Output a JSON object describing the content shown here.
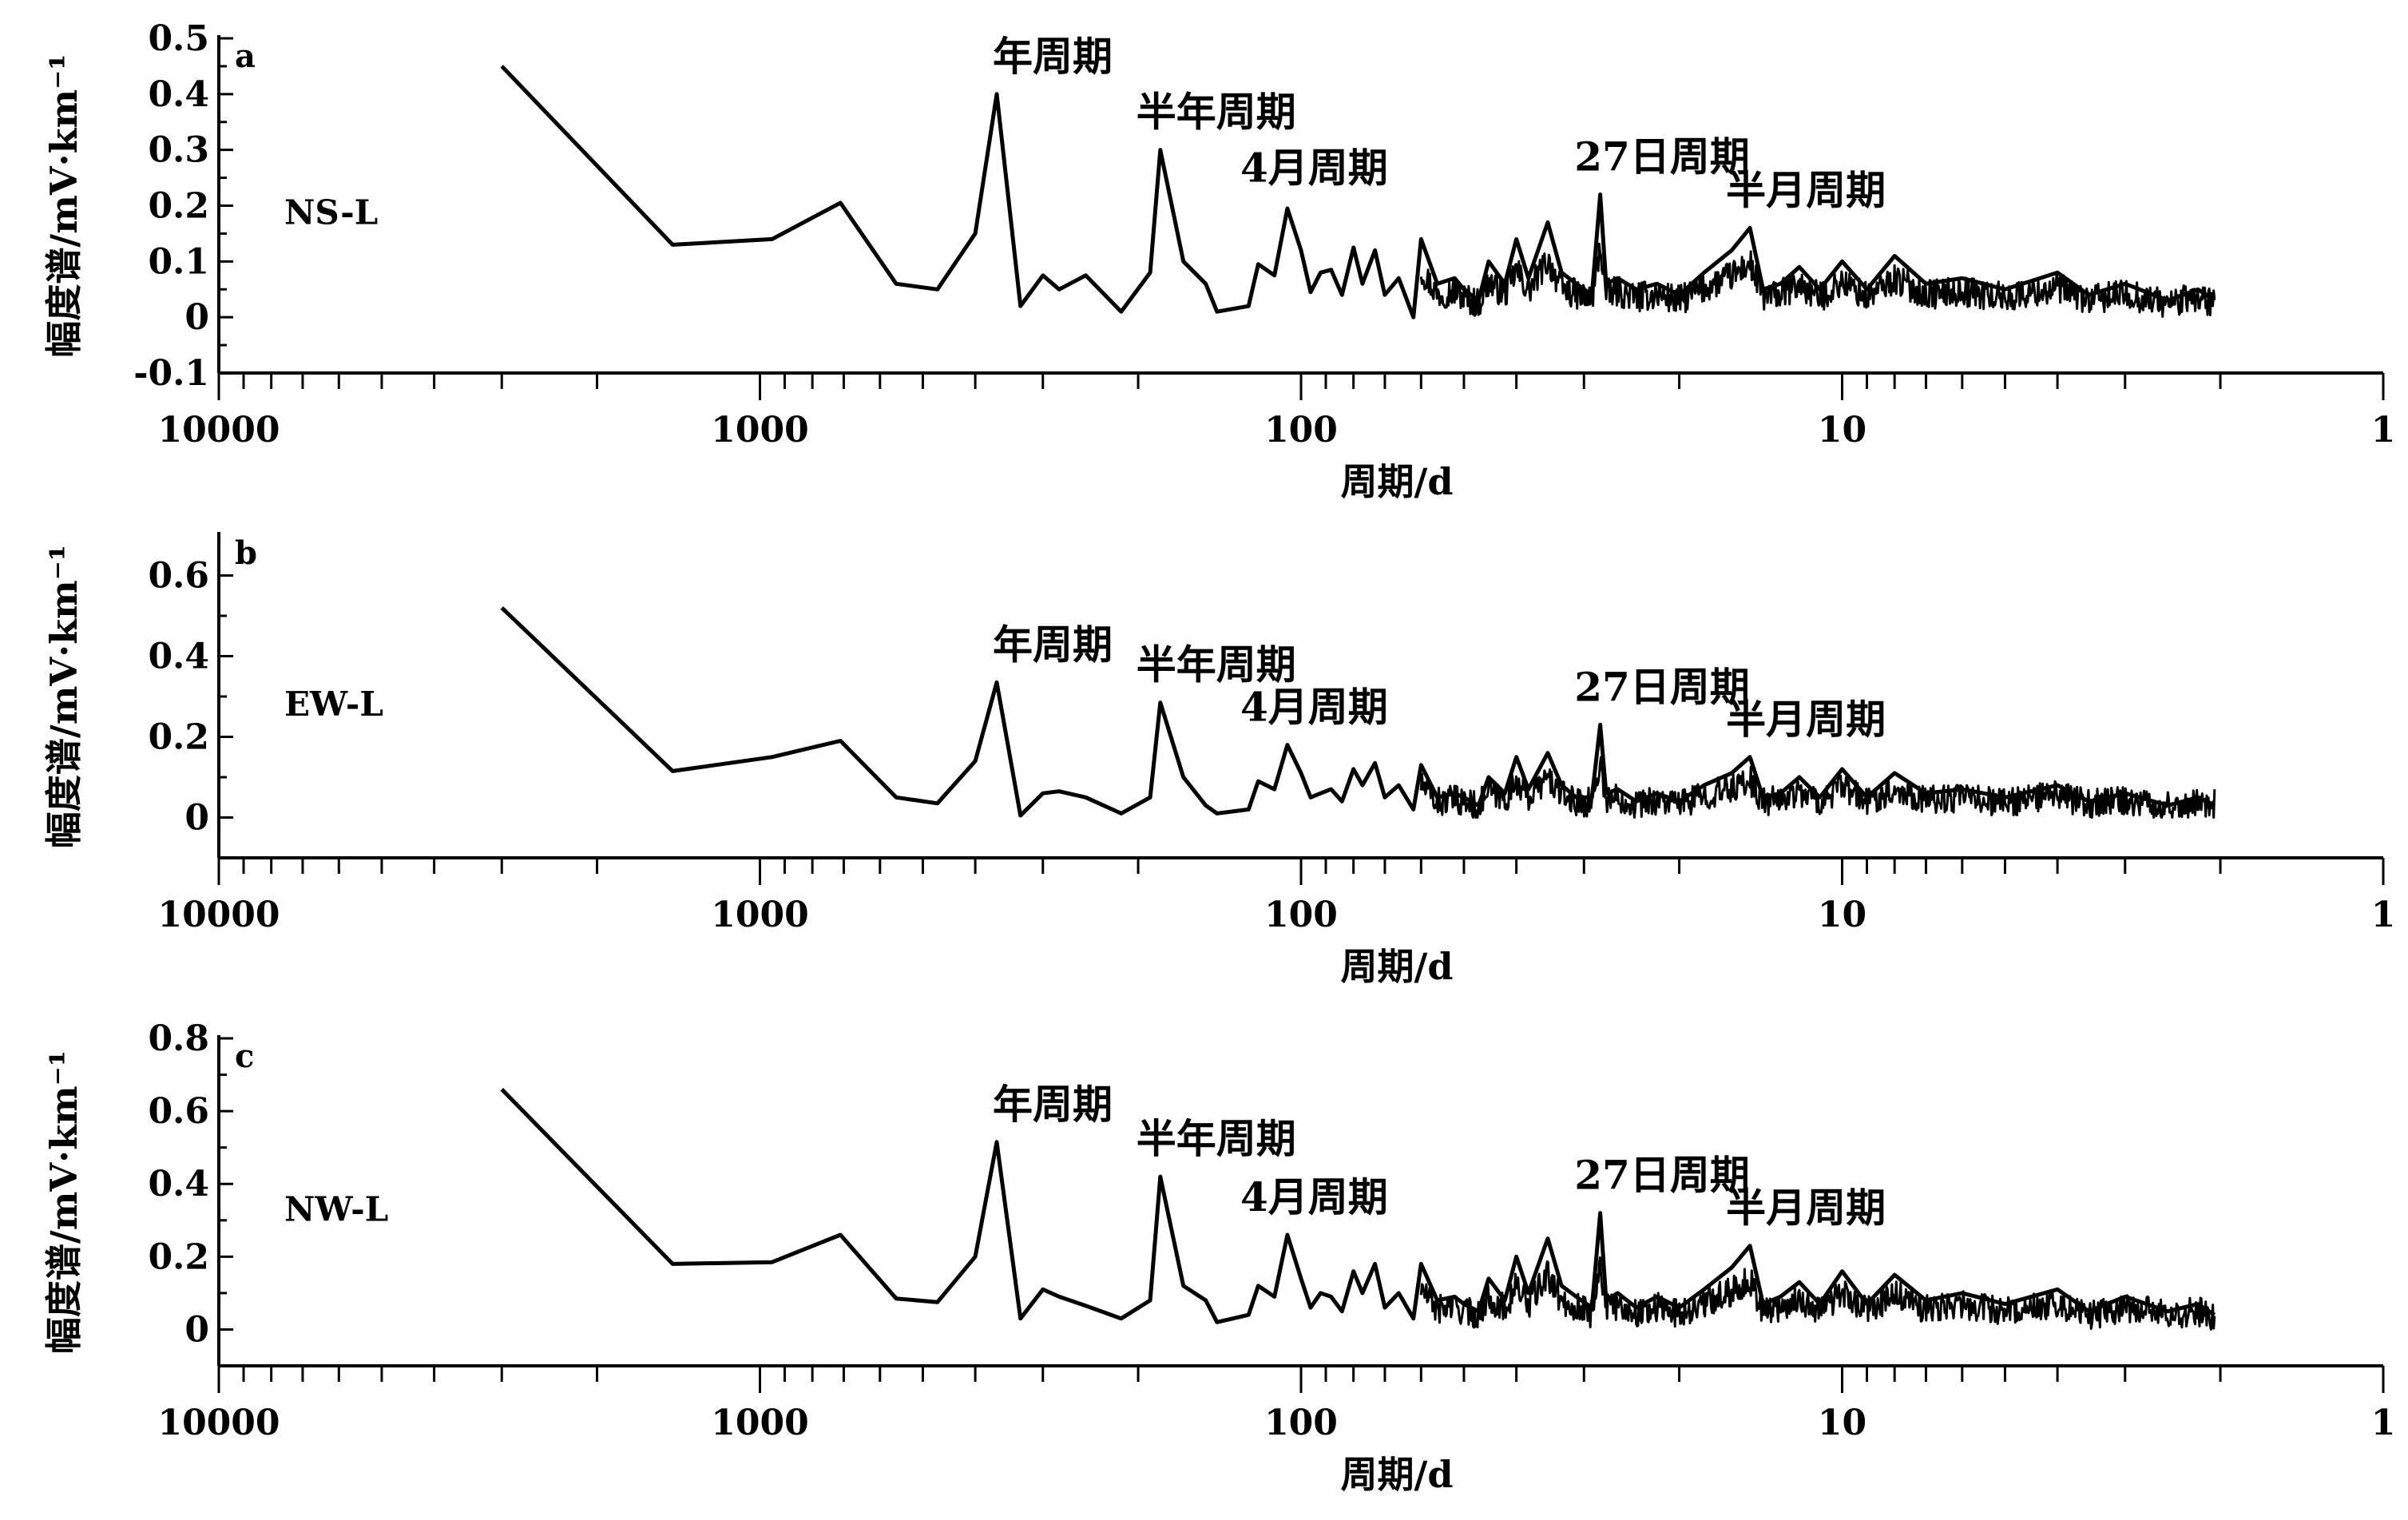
{
  "chart_data": [
    {
      "type": "line",
      "panel_label": "a",
      "series_label": "NS-L",
      "xlabel": "周期/d",
      "ylabel": "幅度谱/mV·km⁻¹",
      "xscale": "log",
      "xreversed": true,
      "xlim": [
        10000,
        1
      ],
      "ylim": [
        -0.1,
        0.5
      ],
      "yticks": [
        -0.1,
        0,
        0.1,
        0.2,
        0.3,
        0.4,
        0.5
      ],
      "ytick_labels": [
        "-0.1",
        "0",
        "0.1",
        "0.2",
        "0.3",
        "0.4",
        "0.5"
      ],
      "xticks": [
        10000,
        1000,
        100,
        10,
        1
      ],
      "xtick_labels": [
        "10000",
        "1000",
        "100",
        "10",
        "1"
      ],
      "series": [
        {
          "x": [
            3000,
            1450,
            950,
            710,
            560,
            470,
            400,
            365,
            330,
            300,
            280,
            250,
            215,
            190,
            182,
            165,
            150,
            143,
            125,
            120,
            112,
            106,
            100,
            96,
            92,
            88,
            84,
            80,
            77,
            73,
            70,
            66,
            62,
            60,
            56,
            52,
            50,
            47,
            45,
            42,
            40,
            38,
            35,
            33,
            31,
            29,
            28,
            27.3,
            26,
            24,
            22,
            20,
            18,
            16,
            14.8,
            14,
            13,
            12,
            11,
            10,
            9,
            8,
            7,
            6,
            5,
            4,
            3.5,
            3,
            2.5,
            2.2,
            2.05
          ],
          "y": [
            0.45,
            0.13,
            0.14,
            0.205,
            0.06,
            0.05,
            0.15,
            0.4,
            0.02,
            0.075,
            0.05,
            0.075,
            0.01,
            0.08,
            0.3,
            0.1,
            0.06,
            0.01,
            0.02,
            0.095,
            0.075,
            0.195,
            0.12,
            0.045,
            0.08,
            0.085,
            0.04,
            0.125,
            0.06,
            0.12,
            0.04,
            0.07,
            0.0,
            0.14,
            0.06,
            0.07,
            0.05,
            0.03,
            0.1,
            0.06,
            0.14,
            0.07,
            0.17,
            0.08,
            0.06,
            0.04,
            0.22,
            0.06,
            0.07,
            0.05,
            0.06,
            0.04,
            0.08,
            0.12,
            0.16,
            0.05,
            0.06,
            0.09,
            0.05,
            0.1,
            0.05,
            0.11,
            0.06,
            0.07,
            0.05,
            0.08,
            0.04,
            0.06,
            0.03,
            0.05,
            0.03
          ]
        }
      ],
      "annotations": [
        {
          "text": "年周期",
          "x": 365,
          "y": 0.4
        },
        {
          "text": "半年周期",
          "x": 182,
          "y": 0.3
        },
        {
          "text": "4月周期",
          "x": 120,
          "y": 0.2
        },
        {
          "text": "27日周期",
          "x": 27.3,
          "y": 0.22
        },
        {
          "text": "半月周期",
          "x": 14.8,
          "y": 0.16
        }
      ]
    },
    {
      "type": "line",
      "panel_label": "b",
      "series_label": "EW-L",
      "xlabel": "周期/d",
      "ylabel": "幅度谱/mV·km⁻¹",
      "xscale": "log",
      "xreversed": true,
      "xlim": [
        10000,
        1
      ],
      "ylim": [
        -0.1,
        0.7
      ],
      "yticks": [
        0,
        0.2,
        0.4,
        0.6
      ],
      "ytick_labels": [
        "0",
        "0.2",
        "0.4",
        "0.6"
      ],
      "xticks": [
        10000,
        1000,
        100,
        10,
        1
      ],
      "xtick_labels": [
        "10000",
        "1000",
        "100",
        "10",
        "1"
      ],
      "series": [
        {
          "x": [
            3000,
            1450,
            950,
            710,
            560,
            470,
            400,
            365,
            330,
            300,
            280,
            250,
            215,
            190,
            182,
            165,
            150,
            143,
            125,
            120,
            112,
            106,
            100,
            96,
            92,
            88,
            84,
            80,
            77,
            73,
            70,
            66,
            62,
            60,
            56,
            52,
            50,
            47,
            45,
            42,
            40,
            38,
            35,
            33,
            31,
            29,
            28,
            27.3,
            26,
            24,
            22,
            20,
            18,
            16,
            14.8,
            14,
            13,
            12,
            11,
            10,
            9,
            8,
            7,
            6,
            5,
            4,
            3.5,
            3,
            2.5,
            2.2,
            2.05
          ],
          "y": [
            0.52,
            0.115,
            0.15,
            0.19,
            0.05,
            0.035,
            0.14,
            0.335,
            0.005,
            0.06,
            0.065,
            0.05,
            0.01,
            0.05,
            0.285,
            0.1,
            0.03,
            0.01,
            0.02,
            0.09,
            0.07,
            0.18,
            0.11,
            0.05,
            0.06,
            0.07,
            0.04,
            0.12,
            0.08,
            0.135,
            0.05,
            0.08,
            0.02,
            0.13,
            0.05,
            0.06,
            0.05,
            0.03,
            0.1,
            0.06,
            0.15,
            0.07,
            0.16,
            0.08,
            0.05,
            0.05,
            0.23,
            0.06,
            0.07,
            0.04,
            0.06,
            0.04,
            0.08,
            0.11,
            0.15,
            0.05,
            0.06,
            0.1,
            0.05,
            0.12,
            0.05,
            0.11,
            0.06,
            0.07,
            0.05,
            0.08,
            0.04,
            0.06,
            0.03,
            0.05,
            0.03
          ]
        }
      ],
      "annotations": [
        {
          "text": "年周期",
          "x": 365,
          "y": 0.335
        },
        {
          "text": "半年周期",
          "x": 182,
          "y": 0.285
        },
        {
          "text": "4月周期",
          "x": 120,
          "y": 0.18
        },
        {
          "text": "27日周期",
          "x": 27.3,
          "y": 0.23
        },
        {
          "text": "半月周期",
          "x": 14.8,
          "y": 0.15
        }
      ]
    },
    {
      "type": "line",
      "panel_label": "c",
      "series_label": "NW-L",
      "xlabel": "周期/d",
      "ylabel": "幅度谱/mV·km⁻¹",
      "xscale": "log",
      "xreversed": true,
      "xlim": [
        10000,
        1
      ],
      "ylim": [
        -0.1,
        0.8
      ],
      "yticks": [
        0,
        0.2,
        0.4,
        0.6,
        0.8
      ],
      "ytick_labels": [
        "0",
        "0.2",
        "0.4",
        "0.6",
        "0.8"
      ],
      "xticks": [
        10000,
        1000,
        100,
        10,
        1
      ],
      "xtick_labels": [
        "10000",
        "1000",
        "100",
        "10",
        "1"
      ],
      "series": [
        {
          "x": [
            3000,
            1450,
            950,
            710,
            560,
            470,
            400,
            365,
            330,
            300,
            280,
            250,
            215,
            190,
            182,
            165,
            150,
            143,
            125,
            120,
            112,
            106,
            100,
            96,
            92,
            88,
            84,
            80,
            77,
            73,
            70,
            66,
            62,
            60,
            56,
            52,
            50,
            47,
            45,
            42,
            40,
            38,
            35,
            33,
            31,
            29,
            28,
            27.3,
            26,
            24,
            22,
            20,
            18,
            16,
            14.8,
            14,
            13,
            12,
            11,
            10,
            9,
            8,
            7,
            6,
            5,
            4,
            3.5,
            3,
            2.5,
            2.2,
            2.05
          ],
          "y": [
            0.66,
            0.18,
            0.185,
            0.26,
            0.085,
            0.075,
            0.2,
            0.515,
            0.03,
            0.11,
            0.09,
            0.065,
            0.03,
            0.08,
            0.42,
            0.12,
            0.08,
            0.02,
            0.04,
            0.12,
            0.09,
            0.26,
            0.14,
            0.06,
            0.1,
            0.09,
            0.05,
            0.16,
            0.1,
            0.18,
            0.06,
            0.1,
            0.03,
            0.18,
            0.08,
            0.09,
            0.07,
            0.05,
            0.14,
            0.08,
            0.2,
            0.1,
            0.25,
            0.12,
            0.09,
            0.06,
            0.32,
            0.08,
            0.1,
            0.06,
            0.09,
            0.06,
            0.11,
            0.17,
            0.23,
            0.07,
            0.09,
            0.13,
            0.07,
            0.16,
            0.07,
            0.15,
            0.08,
            0.1,
            0.07,
            0.11,
            0.05,
            0.09,
            0.05,
            0.07,
            0.04
          ]
        }
      ],
      "annotations": [
        {
          "text": "年周期",
          "x": 365,
          "y": 0.515
        },
        {
          "text": "半年周期",
          "x": 182,
          "y": 0.42
        },
        {
          "text": "4月周期",
          "x": 120,
          "y": 0.26
        },
        {
          "text": "27日周期",
          "x": 27.3,
          "y": 0.32
        },
        {
          "text": "半月周期",
          "x": 14.8,
          "y": 0.23
        }
      ]
    }
  ]
}
